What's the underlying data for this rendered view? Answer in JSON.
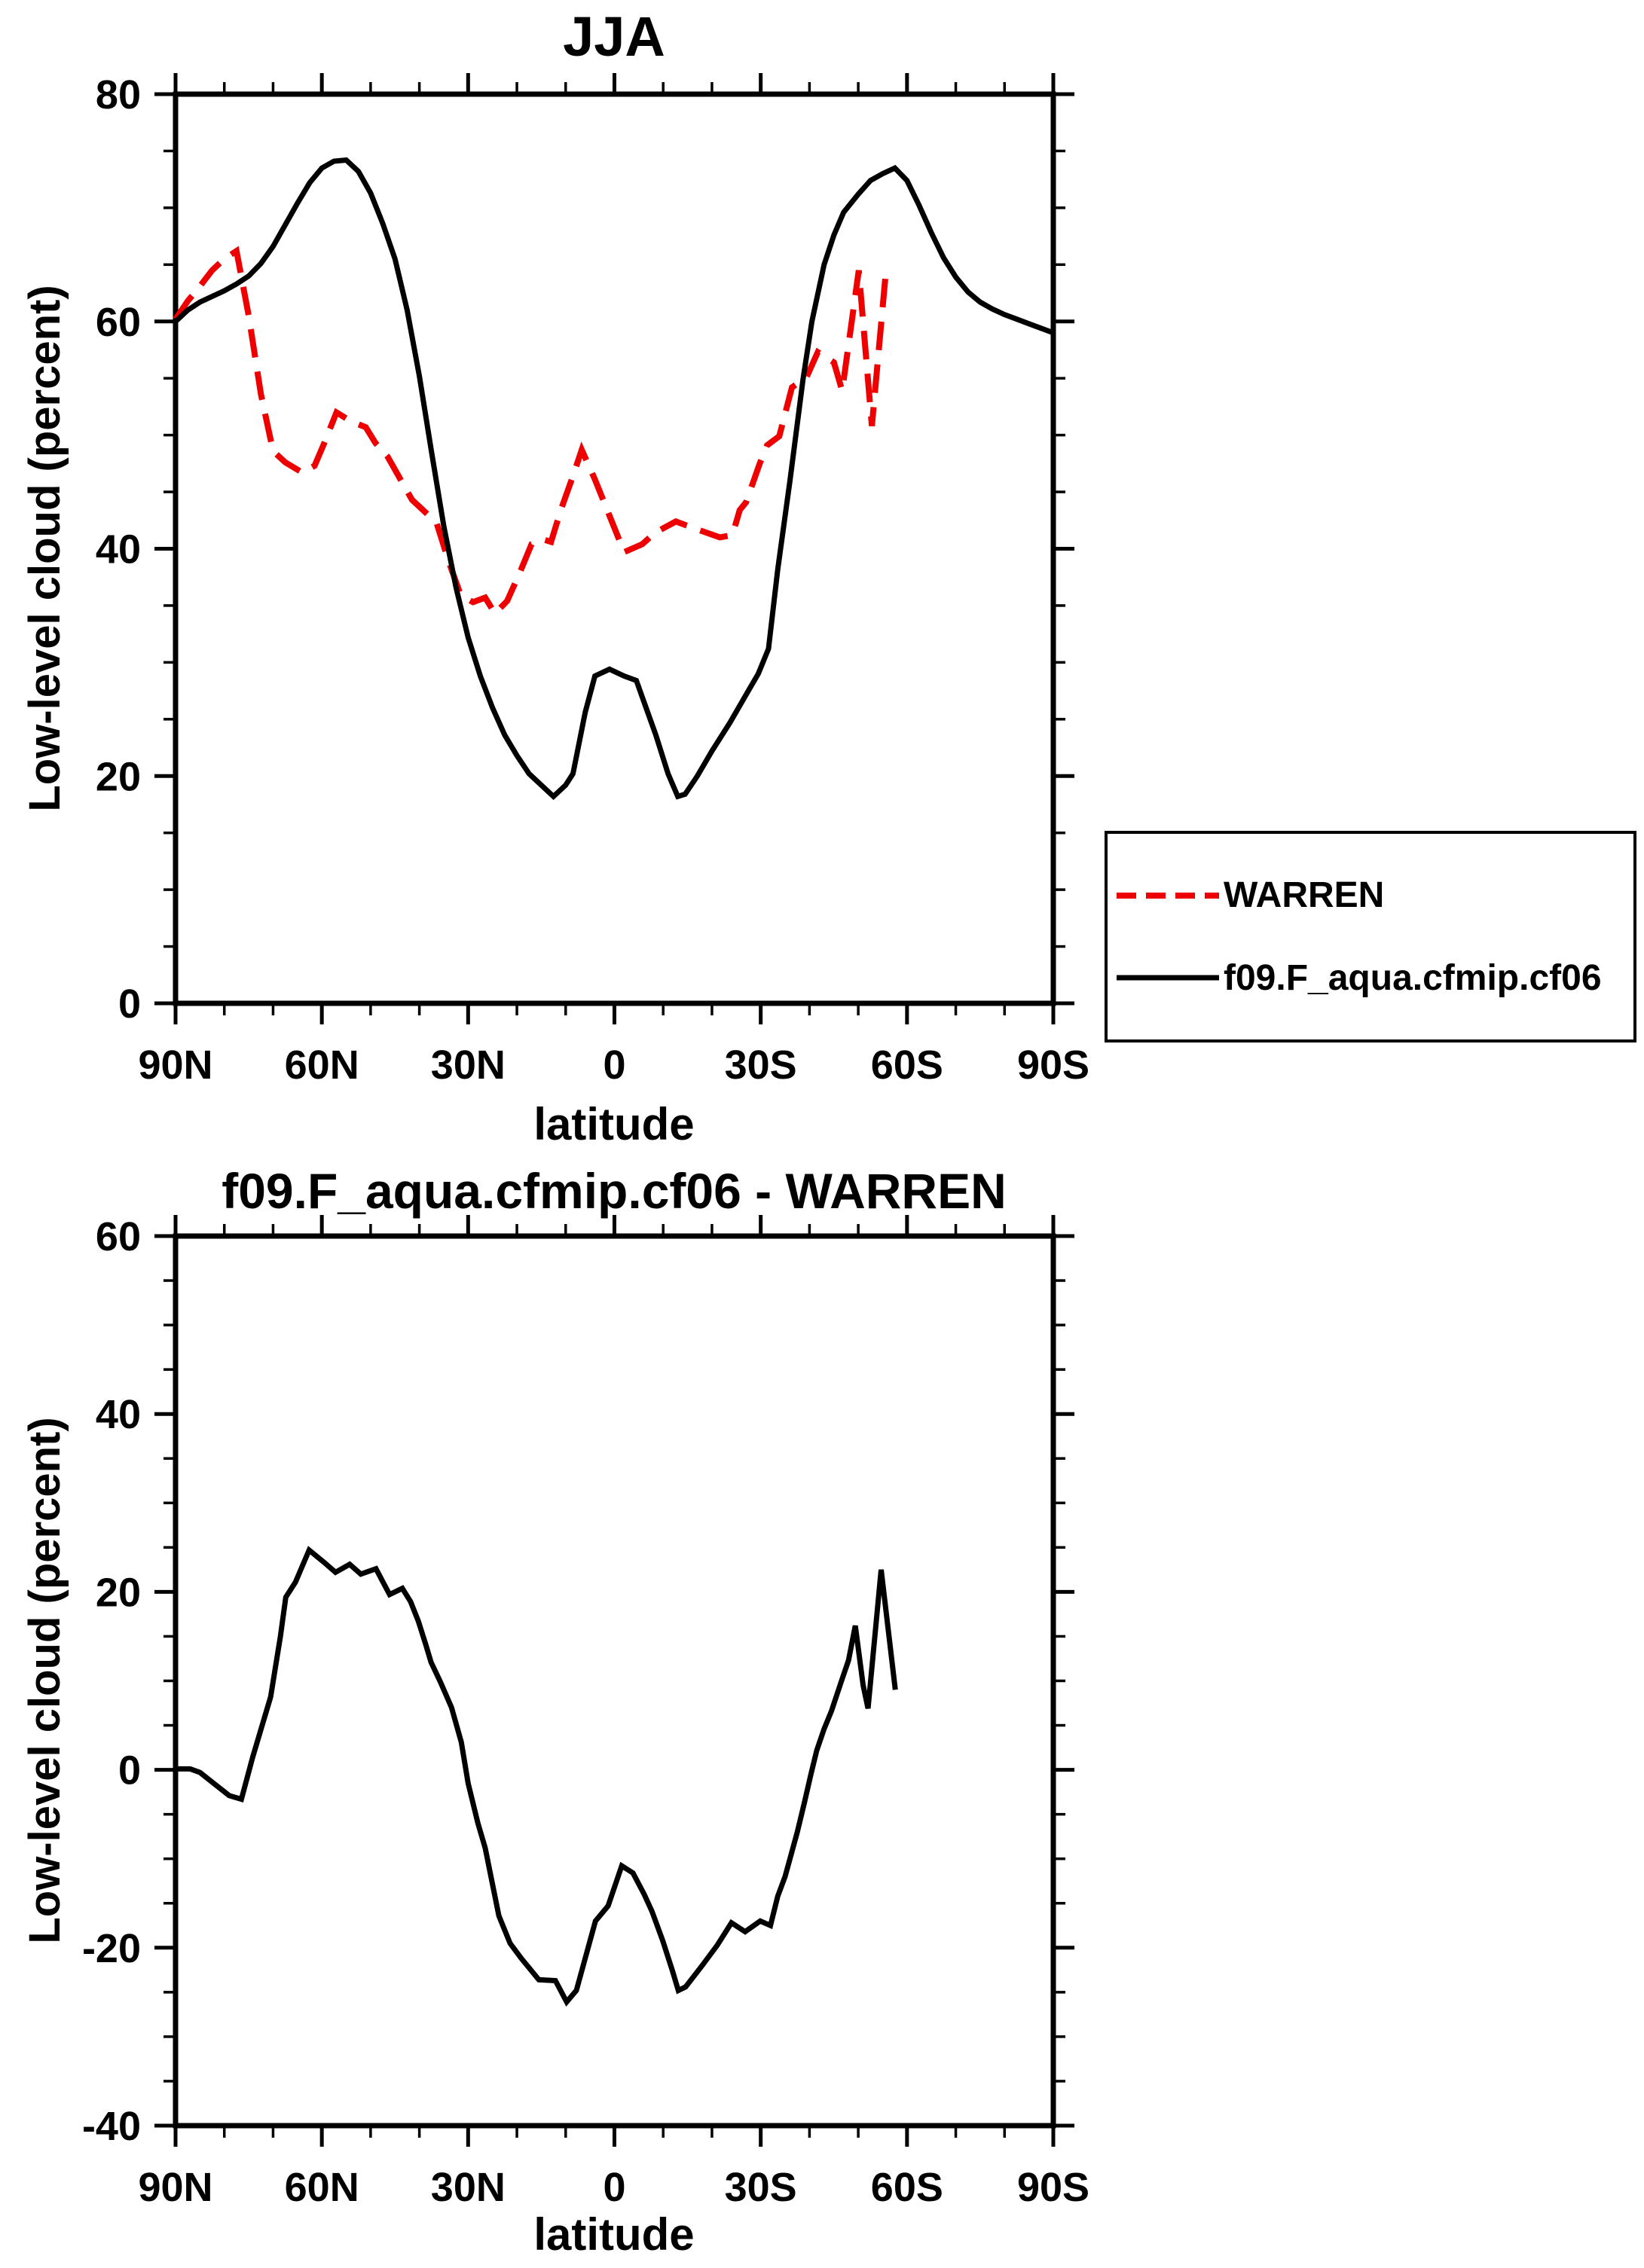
{
  "page": {
    "background": "#ffffff"
  },
  "legend": {
    "entries": [
      {
        "label": "WARREN",
        "color": "#ee0000",
        "style": "dashed"
      },
      {
        "label": "f09.F_aqua.cfmip.cf06",
        "color": "#000000",
        "style": "solid"
      }
    ]
  },
  "chart_data": [
    {
      "type": "line",
      "title": "JJA",
      "xlabel": "latitude",
      "ylabel": "Low-level cloud (percent)",
      "xlim": [
        90,
        -90
      ],
      "ylim": [
        0,
        80
      ],
      "x_major_ticks": [
        90,
        60,
        30,
        0,
        -30,
        -60,
        -90
      ],
      "x_tick_labels": [
        "90N",
        "60N",
        "30N",
        "0",
        "30S",
        "60S",
        "90S"
      ],
      "x_minor_step": 10,
      "y_major_ticks": [
        0,
        20,
        40,
        60,
        80
      ],
      "y_tick_labels": [
        "0",
        "20",
        "40",
        "60",
        "80"
      ],
      "y_minor_step": 5,
      "grid": false,
      "legend_position": "outside-right-below",
      "series": [
        {
          "name": "WARREN",
          "color": "#ee0000",
          "style": "dashed",
          "points": [
            [
              90,
              60.2
            ],
            [
              87.5,
              61.8
            ],
            [
              85,
              63.1
            ],
            [
              82.5,
              64.5
            ],
            [
              80,
              65.5
            ],
            [
              77.5,
              66.2
            ],
            [
              75,
              60.5
            ],
            [
              72.5,
              53.6
            ],
            [
              70,
              48.6
            ],
            [
              67.5,
              47.6
            ],
            [
              64,
              46.7
            ],
            [
              61.5,
              47.3
            ],
            [
              59.5,
              49.3
            ],
            [
              57,
              52
            ],
            [
              54,
              51.2
            ],
            [
              51,
              50.7
            ],
            [
              49,
              49.3
            ],
            [
              46.5,
              48.1
            ],
            [
              44,
              46.2
            ],
            [
              41.5,
              44.3
            ],
            [
              39,
              43.3
            ],
            [
              36.5,
              42.3
            ],
            [
              34,
              38.9
            ],
            [
              31.5,
              35.9
            ],
            [
              29,
              35.3
            ],
            [
              26.5,
              35.7
            ],
            [
              24.5,
              34.3
            ],
            [
              22,
              35.4
            ],
            [
              19.5,
              37.8
            ],
            [
              17,
              40.4
            ],
            [
              14.5,
              40.8
            ],
            [
              13,
              40.6
            ],
            [
              11,
              43.4
            ],
            [
              8.5,
              46.4
            ],
            [
              6.7,
              48.7
            ],
            [
              4,
              46.1
            ],
            [
              -2,
              39.7
            ],
            [
              -5.7,
              40.4
            ],
            [
              -8.3,
              41.4
            ],
            [
              -12.6,
              42.4
            ],
            [
              -17,
              41.7
            ],
            [
              -21.6,
              41
            ],
            [
              -24.2,
              41.2
            ],
            [
              -25.7,
              43.4
            ],
            [
              -27,
              44.1
            ],
            [
              -29.8,
              47.5
            ],
            [
              -31.3,
              49.1
            ],
            [
              -33.8,
              49.9
            ],
            [
              -36.4,
              54.2
            ],
            [
              -39.4,
              55.1
            ],
            [
              -41.7,
              57.3
            ],
            [
              -45,
              56.4
            ],
            [
              -46.7,
              53.9
            ],
            [
              -50.1,
              64.5
            ],
            [
              -52.8,
              50.8
            ],
            [
              -55.6,
              64.1
            ]
          ]
        },
        {
          "name": "f09.F_aqua.cfmip.cf06",
          "color": "#000000",
          "style": "solid",
          "points": [
            [
              90,
              60
            ],
            [
              87.5,
              61
            ],
            [
              85,
              61.7
            ],
            [
              82.5,
              62.2
            ],
            [
              80,
              62.7
            ],
            [
              77.5,
              63.3
            ],
            [
              75,
              64
            ],
            [
              72.5,
              65.1
            ],
            [
              70,
              66.6
            ],
            [
              67.5,
              68.5
            ],
            [
              65,
              70.4
            ],
            [
              62.5,
              72.2
            ],
            [
              60,
              73.5
            ],
            [
              57.5,
              74.1
            ],
            [
              55,
              74.2
            ],
            [
              52.5,
              73.2
            ],
            [
              50,
              71.3
            ],
            [
              47.5,
              68.6
            ],
            [
              45,
              65.5
            ],
            [
              42.5,
              61
            ],
            [
              40,
              55.2
            ],
            [
              37.5,
              48.5
            ],
            [
              35,
              42
            ],
            [
              32.5,
              36.6
            ],
            [
              30,
              32.2
            ],
            [
              27.5,
              28.8
            ],
            [
              25,
              26
            ],
            [
              22.5,
              23.6
            ],
            [
              20,
              21.8
            ],
            [
              17.5,
              20.2
            ],
            [
              15,
              19.2
            ],
            [
              12.5,
              18.2
            ],
            [
              10,
              19.2
            ],
            [
              8.5,
              20.2
            ],
            [
              6,
              25.6
            ],
            [
              4,
              28.8
            ],
            [
              1,
              29.4
            ],
            [
              -2,
              28.8
            ],
            [
              -4.5,
              28.4
            ],
            [
              -6,
              26.6
            ],
            [
              -8.5,
              23.6
            ],
            [
              -11,
              20.2
            ],
            [
              -13,
              18.2
            ],
            [
              -14.5,
              18.4
            ],
            [
              -17,
              20
            ],
            [
              -20,
              22.2
            ],
            [
              -23.7,
              24.7
            ],
            [
              -27.2,
              27.3
            ],
            [
              -29.5,
              29
            ],
            [
              -31.6,
              31.2
            ],
            [
              -33.5,
              38.2
            ],
            [
              -36,
              46
            ],
            [
              -38.7,
              55
            ],
            [
              -40.5,
              60
            ],
            [
              -43,
              65
            ],
            [
              -45,
              67.6
            ],
            [
              -47,
              69.6
            ],
            [
              -50,
              71.2
            ],
            [
              -52.5,
              72.4
            ],
            [
              -55,
              73
            ],
            [
              -57.5,
              73.5
            ],
            [
              -60,
              72.4
            ],
            [
              -62.5,
              70.2
            ],
            [
              -65,
              67.8
            ],
            [
              -67.5,
              65.6
            ],
            [
              -70,
              63.9
            ],
            [
              -72.5,
              62.6
            ],
            [
              -75,
              61.7
            ],
            [
              -77.5,
              61.1
            ],
            [
              -80,
              60.6
            ],
            [
              -82.5,
              60.2
            ],
            [
              -85,
              59.8
            ],
            [
              -87.5,
              59.4
            ],
            [
              -90,
              59
            ]
          ]
        }
      ]
    },
    {
      "type": "line",
      "title": "f09.F_aqua.cfmip.cf06 - WARREN",
      "xlabel": "latitude",
      "ylabel": "Low-level cloud (percent)",
      "xlim": [
        90,
        -90
      ],
      "ylim": [
        -40,
        60
      ],
      "x_major_ticks": [
        90,
        60,
        30,
        0,
        -30,
        -60,
        -90
      ],
      "x_tick_labels": [
        "90N",
        "60N",
        "30N",
        "0",
        "30S",
        "60S",
        "90S"
      ],
      "x_minor_step": 10,
      "y_major_ticks": [
        -40,
        -20,
        0,
        20,
        40,
        60
      ],
      "y_tick_labels": [
        "-40",
        "-20",
        "0",
        "20",
        "40",
        "60"
      ],
      "y_minor_step": 5,
      "grid": false,
      "legend_position": "none",
      "series": [
        {
          "name": "f09.F_aqua.cfmip.cf06 - WARREN",
          "color": "#000000",
          "style": "solid",
          "points": [
            [
              90,
              0.1
            ],
            [
              87,
              0.1
            ],
            [
              85,
              -0.3
            ],
            [
              82,
              -1.6
            ],
            [
              79,
              -2.9
            ],
            [
              76.5,
              -3.3
            ],
            [
              74.2,
              1.4
            ],
            [
              70.5,
              8.2
            ],
            [
              68.5,
              15
            ],
            [
              67.4,
              19.4
            ],
            [
              65.4,
              21.1
            ],
            [
              62.6,
              24.7
            ],
            [
              59.5,
              23.3
            ],
            [
              57.2,
              22.2
            ],
            [
              54.3,
              23.1
            ],
            [
              52,
              22
            ],
            [
              48.9,
              22.6
            ],
            [
              46.1,
              19.7
            ],
            [
              43.5,
              20.4
            ],
            [
              41.8,
              18.9
            ],
            [
              40.2,
              16.7
            ],
            [
              38.7,
              14.1
            ],
            [
              37.6,
              12.1
            ],
            [
              35.7,
              9.9
            ],
            [
              33.4,
              7
            ],
            [
              31.4,
              3.1
            ],
            [
              30,
              -1.5
            ],
            [
              28,
              -6
            ],
            [
              26.5,
              -8.8
            ],
            [
              23.7,
              -16.4
            ],
            [
              21.4,
              -19.5
            ],
            [
              19.1,
              -21.2
            ],
            [
              15.5,
              -23.6
            ],
            [
              12.1,
              -23.7
            ],
            [
              9.8,
              -26.1
            ],
            [
              7.8,
              -24.8
            ],
            [
              3.9,
              -17
            ],
            [
              1.3,
              -15.3
            ],
            [
              -1.5,
              -10.8
            ],
            [
              -3.8,
              -11.6
            ],
            [
              -6.1,
              -14
            ],
            [
              -7.7,
              -15.9
            ],
            [
              -9.9,
              -19.2
            ],
            [
              -11.9,
              -22.6
            ],
            [
              -13.1,
              -24.8
            ],
            [
              -14.6,
              -24.4
            ],
            [
              -18,
              -22
            ],
            [
              -21.1,
              -19.7
            ],
            [
              -24,
              -17.2
            ],
            [
              -26.8,
              -18.2
            ],
            [
              -29.9,
              -17
            ],
            [
              -32,
              -17.5
            ],
            [
              -33.5,
              -14.2
            ],
            [
              -35,
              -12
            ],
            [
              -36,
              -10
            ],
            [
              -37.5,
              -7
            ],
            [
              -39,
              -3.6
            ],
            [
              -40.3,
              -0.5
            ],
            [
              -41.5,
              2.2
            ],
            [
              -43,
              4.6
            ],
            [
              -44.5,
              6.6
            ],
            [
              -46.5,
              9.9
            ],
            [
              -48,
              12.3
            ],
            [
              -49.4,
              16.2
            ],
            [
              -51,
              9.5
            ],
            [
              -52,
              6.9
            ],
            [
              -54.7,
              22.5
            ],
            [
              -57.6,
              9
            ]
          ]
        }
      ]
    }
  ]
}
